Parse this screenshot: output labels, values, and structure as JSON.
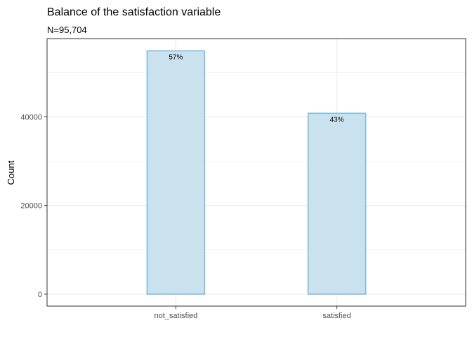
{
  "chart_data": {
    "type": "bar",
    "title": "Balance of the satisfaction variable",
    "subtitle": "N=95,704",
    "xlabel": "",
    "ylabel": "Count",
    "categories": [
      "not_satisfied",
      "satisfied"
    ],
    "values": [
      54900,
      40804
    ],
    "value_labels": [
      "57%",
      "43%"
    ],
    "ylim": [
      -2700,
      57650
    ],
    "yticks": [
      0,
      20000,
      40000
    ],
    "ytick_labels": [
      "0",
      "20000",
      "40000"
    ],
    "grid": true,
    "colors": {
      "bar_fill": "#c9e2ee",
      "bar_stroke": "#7fbcdc",
      "grid": "#ebebeb",
      "panel_border": "#333333"
    }
  }
}
